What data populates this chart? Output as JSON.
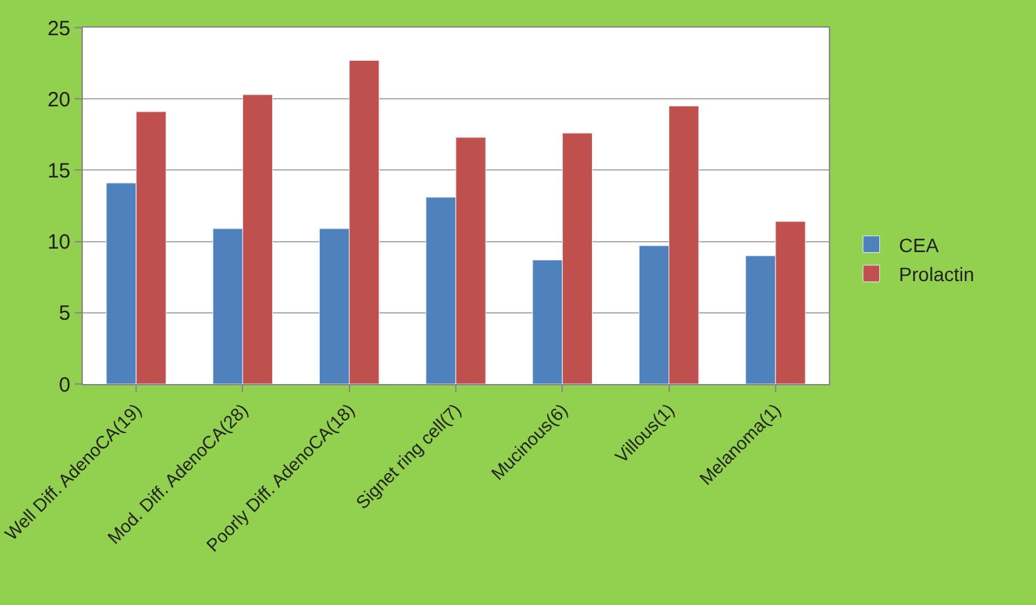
{
  "chart_data": {
    "type": "bar",
    "categories": [
      "Well Diff. AdenoCA(19)",
      "Mod. Diff. AdenoCA(28)",
      "Poorly Diff. AdenoCA(18)",
      "Signet ring cell(7)",
      "Mucinous(6)",
      "Villous(1)",
      "Melanoma(1)"
    ],
    "series": [
      {
        "name": "CEA",
        "color": "#4f81bd",
        "values": [
          14.1,
          10.9,
          10.9,
          13.1,
          8.7,
          9.7,
          9.0
        ]
      },
      {
        "name": "Prolactin",
        "color": "#c0504d",
        "values": [
          19.1,
          20.3,
          22.7,
          17.3,
          17.6,
          19.5,
          11.4
        ]
      }
    ],
    "ylim": [
      0,
      25
    ],
    "yticks": [
      0,
      5,
      10,
      15,
      20,
      25
    ],
    "grid": "y",
    "legend": "right"
  }
}
